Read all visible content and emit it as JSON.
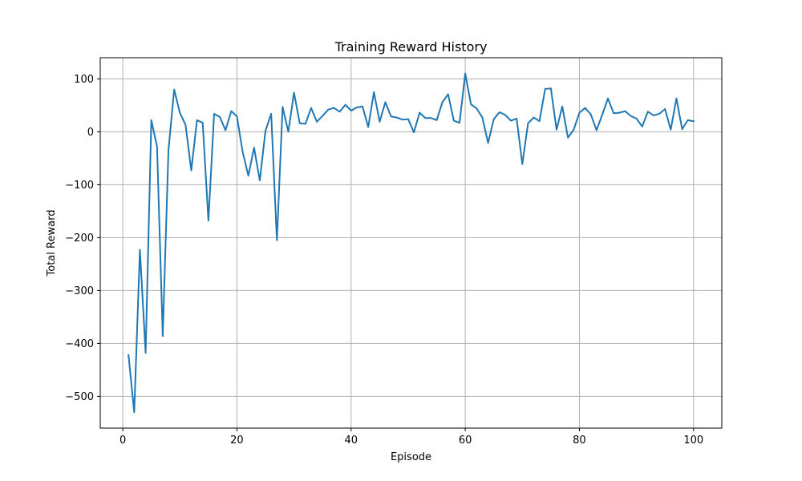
{
  "chart_data": {
    "type": "line",
    "title": "Training Reward History",
    "xlabel": "Episode",
    "ylabel": "Total Reward",
    "xlim": [
      -3.95,
      104.95
    ],
    "ylim": [
      -560,
      140
    ],
    "xticks": [
      0,
      20,
      40,
      60,
      80,
      100
    ],
    "yticks": [
      -500,
      -400,
      -300,
      -200,
      -100,
      0,
      100
    ],
    "ytick_labels": [
      "−500",
      "−400",
      "−300",
      "−200",
      "−100",
      "0",
      "100"
    ],
    "grid": true,
    "line_color": "#1f77b4",
    "series": [
      {
        "x": [
          1,
          2,
          3,
          4,
          5,
          6,
          7,
          8,
          9,
          10,
          11,
          12,
          13,
          14,
          15,
          16,
          17,
          18,
          19,
          20,
          21,
          22,
          23,
          24,
          25,
          26,
          27,
          28,
          29,
          30,
          31,
          32,
          33,
          34,
          35,
          36,
          37,
          38,
          39,
          40,
          41,
          42,
          43,
          44,
          45,
          46,
          47,
          48,
          49,
          50,
          51,
          52,
          53,
          54,
          55,
          56,
          57,
          58,
          59,
          60,
          61,
          62,
          63,
          64,
          65,
          66,
          67,
          68,
          69,
          70,
          71,
          72,
          73,
          74,
          75,
          76,
          77,
          78,
          79,
          80,
          81,
          82,
          83,
          84,
          85,
          86,
          87,
          88,
          89,
          90,
          91,
          92,
          93,
          94,
          95,
          96,
          97,
          98,
          99,
          100
        ],
        "values": [
          -422,
          -530,
          -223,
          -418,
          22,
          -28,
          -386,
          -35,
          80,
          36,
          13,
          -73,
          22,
          17,
          -168,
          34,
          28,
          3,
          39,
          29,
          -38,
          -83,
          -30,
          -92,
          2,
          34,
          -205,
          47,
          0,
          74,
          16,
          15,
          45,
          19,
          30,
          42,
          45,
          38,
          51,
          40,
          46,
          48,
          9,
          75,
          19,
          56,
          29,
          27,
          23,
          24,
          -1,
          36,
          26,
          26,
          22,
          56,
          71,
          21,
          17,
          110,
          52,
          44,
          27,
          -21,
          24,
          37,
          32,
          21,
          25,
          -61,
          16,
          27,
          20,
          81,
          82,
          4,
          48,
          -11,
          4,
          36,
          45,
          33,
          3,
          32,
          63,
          35,
          36,
          39,
          30,
          25,
          10,
          38,
          31,
          34,
          43,
          4,
          63,
          5,
          22,
          20
        ]
      }
    ]
  }
}
